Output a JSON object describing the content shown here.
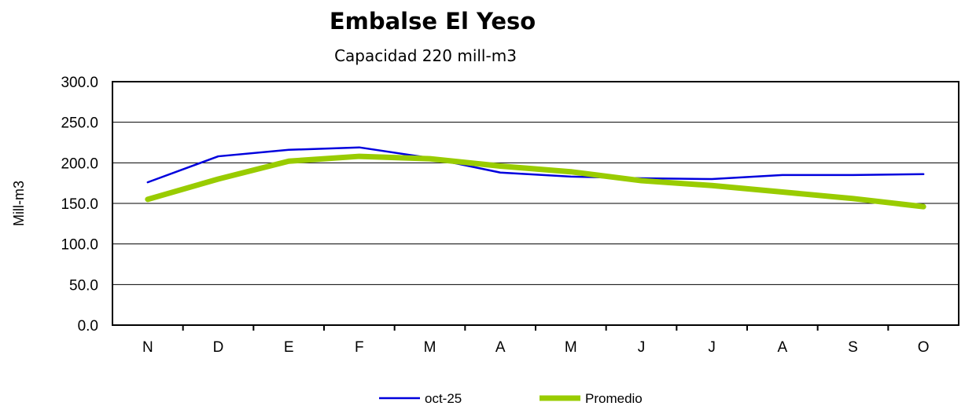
{
  "chart_data": {
    "type": "line",
    "title": "Embalse El Yeso",
    "subtitle": "Capacidad 220 mill-m3",
    "xlabel": "",
    "ylabel": "Mill-m3",
    "categories": [
      "N",
      "D",
      "E",
      "F",
      "M",
      "A",
      "M",
      "J",
      "J",
      "A",
      "S",
      "O"
    ],
    "ylim": [
      0,
      300
    ],
    "yticks": [
      0,
      50,
      100,
      150,
      200,
      250,
      300
    ],
    "ytick_labels": [
      "0.0",
      "50.0",
      "100.0",
      "150.0",
      "200.0",
      "250.0",
      "300.0"
    ],
    "grid": true,
    "legend_position": "bottom",
    "series": [
      {
        "name": "oct-25",
        "color": "#0000dd",
        "values": [
          176,
          208,
          216,
          219,
          206,
          188,
          183,
          181,
          180,
          185,
          185,
          186
        ]
      },
      {
        "name": "Promedio",
        "color": "#99cc00",
        "values": [
          155,
          180,
          202,
          208,
          205,
          196,
          189,
          178,
          172,
          164,
          156,
          146
        ]
      }
    ]
  }
}
